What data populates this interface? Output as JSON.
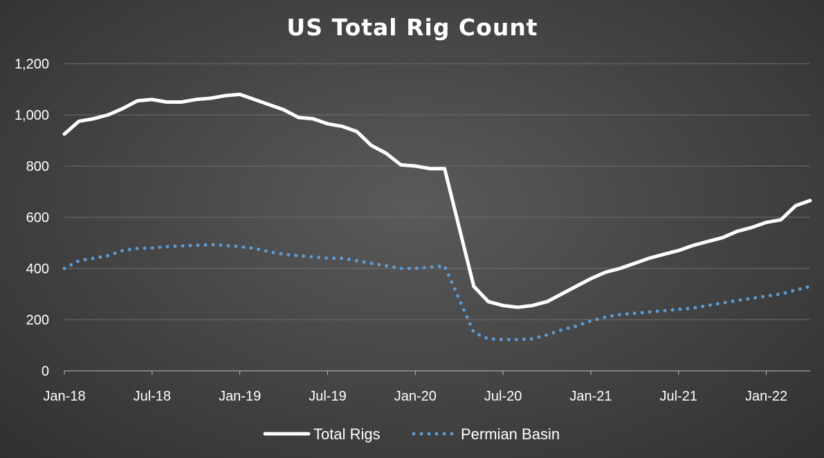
{
  "chart_data": {
    "type": "line",
    "title": "US Total Rig Count",
    "xlabel": "",
    "ylabel": "",
    "ylim": [
      0,
      1200
    ],
    "yticks": [
      0,
      200,
      400,
      600,
      800,
      1000,
      1200
    ],
    "ytick_labels": [
      "0",
      "200",
      "400",
      "600",
      "800",
      "1,000",
      "1,200"
    ],
    "xlim": [
      "2018-01",
      "2022-04"
    ],
    "xtick_labels": [
      "Jan-18",
      "Jul-18",
      "Jan-19",
      "Jul-19",
      "Jan-20",
      "Jul-20",
      "Jan-21",
      "Jul-21",
      "Jan-22"
    ],
    "grid": true,
    "legend_position": "bottom",
    "x": [
      "2018-01",
      "2018-02",
      "2018-03",
      "2018-04",
      "2018-05",
      "2018-06",
      "2018-07",
      "2018-08",
      "2018-09",
      "2018-10",
      "2018-11",
      "2018-12",
      "2019-01",
      "2019-02",
      "2019-03",
      "2019-04",
      "2019-05",
      "2019-06",
      "2019-07",
      "2019-08",
      "2019-09",
      "2019-10",
      "2019-11",
      "2019-12",
      "2020-01",
      "2020-02",
      "2020-03",
      "2020-04",
      "2020-05",
      "2020-06",
      "2020-07",
      "2020-08",
      "2020-09",
      "2020-10",
      "2020-11",
      "2020-12",
      "2021-01",
      "2021-02",
      "2021-03",
      "2021-04",
      "2021-05",
      "2021-06",
      "2021-07",
      "2021-08",
      "2021-09",
      "2021-10",
      "2021-11",
      "2021-12",
      "2022-01",
      "2022-02",
      "2022-03",
      "2022-04"
    ],
    "series": [
      {
        "name": "Total Rigs",
        "color": "#ffffff",
        "style": "solid",
        "values": [
          925,
          975,
          985,
          1000,
          1025,
          1055,
          1060,
          1050,
          1050,
          1060,
          1065,
          1075,
          1080,
          1060,
          1040,
          1020,
          990,
          985,
          965,
          955,
          935,
          880,
          850,
          805,
          800,
          790,
          790,
          560,
          330,
          270,
          255,
          248,
          255,
          270,
          300,
          330,
          360,
          385,
          400,
          420,
          440,
          455,
          470,
          490,
          505,
          520,
          545,
          560,
          580,
          590,
          645,
          665
        ]
      },
      {
        "name": "Permian Basin",
        "color": "#5b9bd5",
        "style": "dotted",
        "values": [
          400,
          430,
          440,
          450,
          470,
          478,
          480,
          485,
          488,
          490,
          493,
          490,
          485,
          478,
          465,
          455,
          450,
          445,
          440,
          440,
          430,
          420,
          410,
          400,
          400,
          405,
          410,
          280,
          150,
          125,
          122,
          122,
          125,
          140,
          160,
          175,
          195,
          210,
          220,
          225,
          230,
          235,
          240,
          245,
          255,
          265,
          275,
          283,
          292,
          300,
          315,
          330
        ]
      }
    ]
  }
}
